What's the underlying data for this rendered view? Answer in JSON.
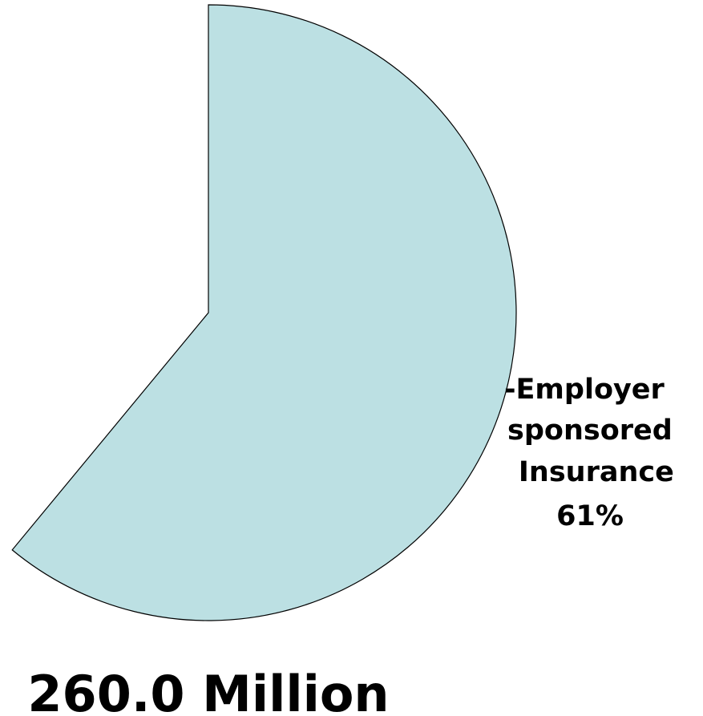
{
  "chart_data": {
    "type": "pie",
    "slices": [
      {
        "label_lines": [
          "-Employer",
          "sponsored",
          "Insurance",
          "61%"
        ],
        "value": 61,
        "color": "#bce0e3"
      }
    ],
    "total_label": "260.0 Million"
  }
}
